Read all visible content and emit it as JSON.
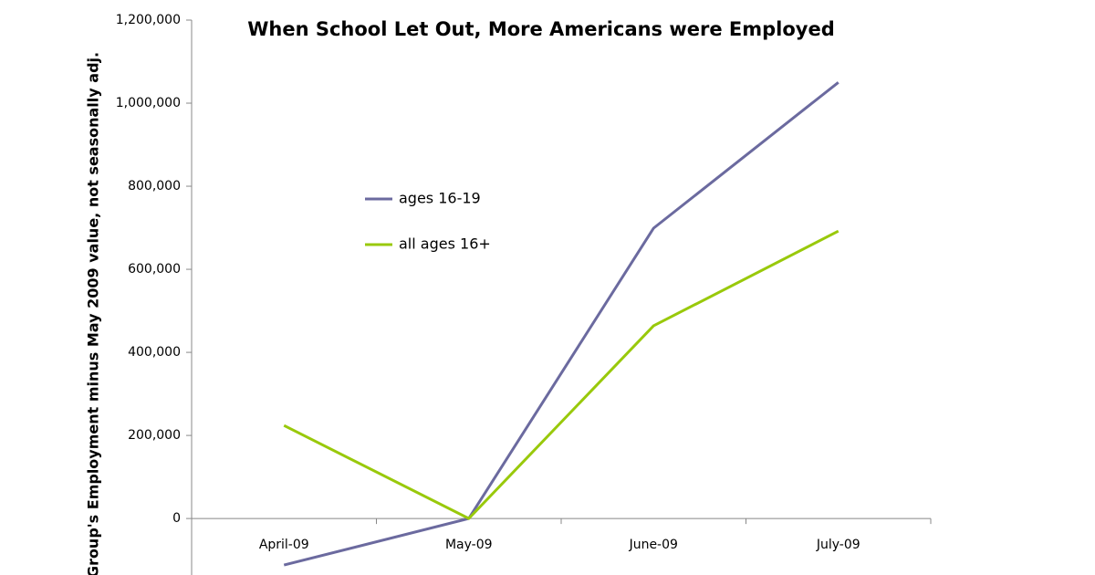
{
  "chart_data": {
    "type": "line",
    "title": "When School Let Out, More Americans were Employed",
    "y_label": "Group's Employment minus May 2009 value, not seasonally adj.",
    "categories": [
      "April-09",
      "May-09",
      "June-09",
      "July-09"
    ],
    "series": [
      {
        "name": "ages 16-19",
        "color": "#6b6a9f",
        "values": [
          -112000,
          0,
          699000,
          1050000
        ]
      },
      {
        "name": "all ages 16+",
        "color": "#99c90b",
        "values": [
          224000,
          0,
          464000,
          692000
        ]
      }
    ],
    "ylim": [
      -136000,
      1200000
    ],
    "yticks": [
      {
        "value": 0,
        "label": "0"
      },
      {
        "value": 200000,
        "label": "200,000"
      },
      {
        "value": 400000,
        "label": "400,000"
      },
      {
        "value": 600000,
        "label": "600,000"
      },
      {
        "value": 800000,
        "label": "800,000"
      },
      {
        "value": 1000000,
        "label": "1,000,000"
      },
      {
        "value": 1200000,
        "label": "1,200,000"
      }
    ]
  }
}
